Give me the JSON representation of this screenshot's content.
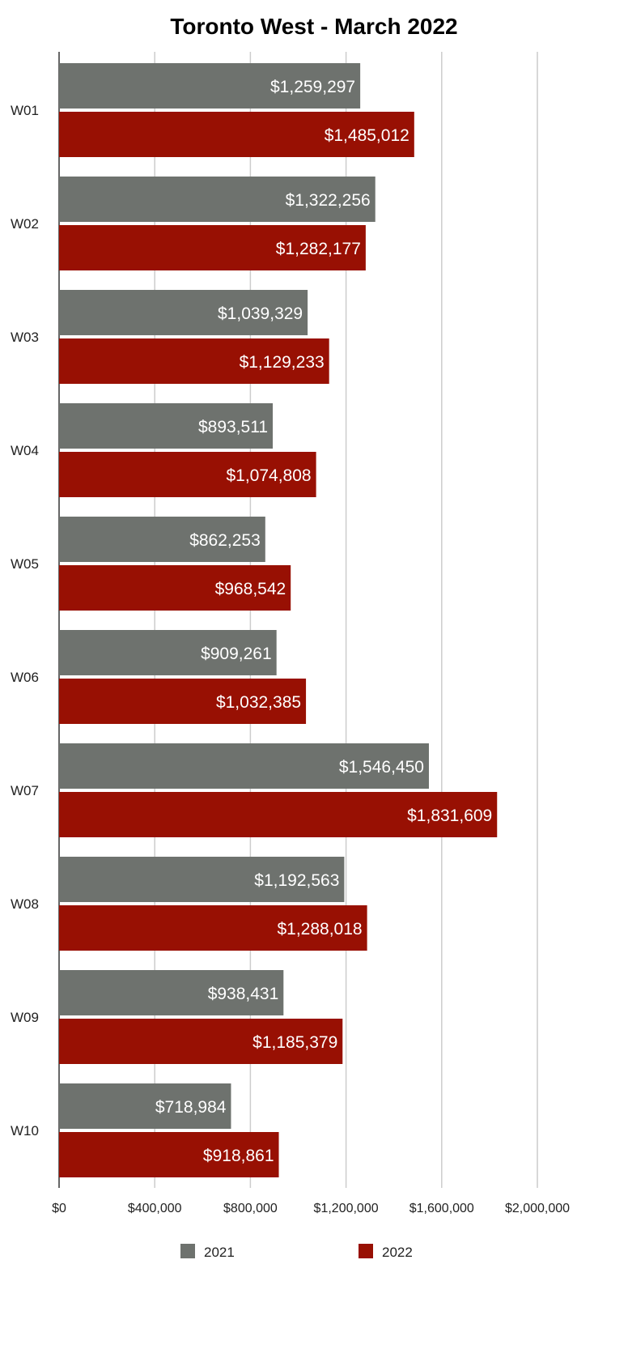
{
  "chart_data": {
    "type": "bar",
    "orientation": "horizontal",
    "title": "Toronto West - March 2022",
    "xlabel": "",
    "ylabel": "",
    "categories": [
      "W01",
      "W02",
      "W03",
      "W04",
      "W05",
      "W06",
      "W07",
      "W08",
      "W09",
      "W10"
    ],
    "series": [
      {
        "name": "2021",
        "color": "#6e726e",
        "values": [
          1259297,
          1322256,
          1039329,
          893511,
          862253,
          909261,
          1546450,
          1192563,
          938431,
          718984
        ],
        "labels": [
          "$1,259,297",
          "$1,322,256",
          "$1,039,329",
          "$893,511",
          "$862,253",
          "$909,261",
          "$1,546,450",
          "$1,192,563",
          "$938,431",
          "$718,984"
        ]
      },
      {
        "name": "2022",
        "color": "#981003",
        "values": [
          1485012,
          1282177,
          1129233,
          1074808,
          968542,
          1032385,
          1831609,
          1288018,
          1185379,
          918861
        ],
        "labels": [
          "$1,485,012",
          "$1,282,177",
          "$1,129,233",
          "$1,074,808",
          "$968,542",
          "$1,032,385",
          "$1,831,609",
          "$1,288,018",
          "$1,185,379",
          "$918,861"
        ]
      }
    ],
    "xlim": [
      0,
      2000000
    ],
    "x_ticks": [
      0,
      400000,
      800000,
      1200000,
      1600000,
      2000000
    ],
    "x_tick_labels": [
      "$0",
      "$400,000",
      "$800,000",
      "$1,200,000",
      "$1,600,000",
      "$2,000,000"
    ],
    "grid": true,
    "legend_position": "bottom"
  }
}
